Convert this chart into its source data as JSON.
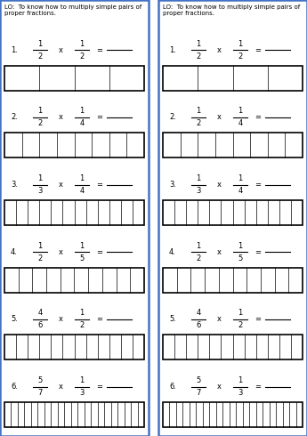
{
  "title": "LO:  To know how to multiply simple pairs of\nproper fractions.",
  "problems": [
    {
      "num": 1,
      "frac1": [
        "1",
        "2"
      ],
      "frac2": [
        "1",
        "2"
      ],
      "grid_cols": 4
    },
    {
      "num": 2,
      "frac1": [
        "1",
        "2"
      ],
      "frac2": [
        "1",
        "4"
      ],
      "grid_cols": 8
    },
    {
      "num": 3,
      "frac1": [
        "1",
        "3"
      ],
      "frac2": [
        "1",
        "4"
      ],
      "grid_cols": 12
    },
    {
      "num": 4,
      "frac1": [
        "1",
        "2"
      ],
      "frac2": [
        "1",
        "5"
      ],
      "grid_cols": 10
    },
    {
      "num": 5,
      "frac1": [
        "4",
        "6"
      ],
      "frac2": [
        "1",
        "2"
      ],
      "grid_cols": 12
    },
    {
      "num": 6,
      "frac1": [
        "5",
        "7"
      ],
      "frac2": [
        "1",
        "3"
      ],
      "grid_cols": 21
    }
  ],
  "border_color": "#4472C4",
  "bg_color": "#ffffff",
  "text_color": "#000000",
  "gray_color": "#888888"
}
